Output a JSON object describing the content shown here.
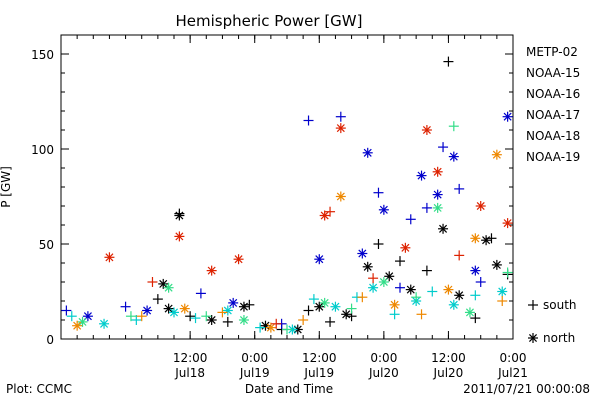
{
  "chart_data": {
    "type": "scatter",
    "title": "Hemispheric Power [GW]",
    "xlabel": "Date and Time",
    "ylabel": "P [GW]",
    "ylim": [
      0,
      160
    ],
    "yticks": [
      0,
      50,
      100,
      150
    ],
    "xlim": [
      "2011-07-17 12:00",
      "2011-07-21 00:00"
    ],
    "xticks": [
      {
        "t": "2011-07-18 12:00",
        "top": "12:00",
        "bottom": "Jul18"
      },
      {
        "t": "2011-07-19 00:00",
        "top": "0:00",
        "bottom": "Jul19"
      },
      {
        "t": "2011-07-19 12:00",
        "top": "12:00",
        "bottom": "Jul19"
      },
      {
        "t": "2011-07-20 00:00",
        "top": "0:00",
        "bottom": "Jul20"
      },
      {
        "t": "2011-07-20 12:00",
        "top": "12:00",
        "bottom": "Jul20"
      },
      {
        "t": "2011-07-21 00:00",
        "top": "0:00",
        "bottom": "Jul21"
      }
    ],
    "grid": false,
    "legend_position": "right",
    "marker_legend": [
      {
        "symbol": "+",
        "label": "south"
      },
      {
        "symbol": "*",
        "label": "north"
      }
    ],
    "series": [
      {
        "name": "METP-02",
        "color": "#000000",
        "points": [
          [
            "2011-07-18 10:00",
            66,
            "+"
          ],
          [
            "2011-07-18 10:00",
            65,
            "*"
          ],
          [
            "2011-07-18 07:00",
            29,
            "*"
          ],
          [
            "2011-07-18 06:00",
            21,
            "+"
          ],
          [
            "2011-07-18 08:00",
            16,
            "*"
          ],
          [
            "2011-07-18 12:00",
            12,
            "+"
          ],
          [
            "2011-07-18 16:00",
            10,
            "*"
          ],
          [
            "2011-07-18 19:00",
            9,
            "+"
          ],
          [
            "2011-07-18 22:00",
            17,
            "*"
          ],
          [
            "2011-07-18 23:00",
            18,
            "+"
          ],
          [
            "2011-07-19 02:00",
            7,
            "*"
          ],
          [
            "2011-07-19 05:00",
            5,
            "+"
          ],
          [
            "2011-07-19 08:00",
            5,
            "*"
          ],
          [
            "2011-07-19 10:00",
            15,
            "+"
          ],
          [
            "2011-07-19 12:00",
            17,
            "*"
          ],
          [
            "2011-07-19 14:00",
            9,
            "+"
          ],
          [
            "2011-07-19 17:00",
            13,
            "*"
          ],
          [
            "2011-07-19 18:00",
            12,
            "+"
          ],
          [
            "2011-07-19 21:00",
            38,
            "*"
          ],
          [
            "2011-07-19 23:00",
            50,
            "+"
          ],
          [
            "2011-07-20 01:00",
            33,
            "*"
          ],
          [
            "2011-07-20 03:00",
            41,
            "+"
          ],
          [
            "2011-07-20 05:00",
            26,
            "*"
          ],
          [
            "2011-07-20 08:00",
            36,
            "+"
          ],
          [
            "2011-07-20 11:00",
            58,
            "*"
          ],
          [
            "2011-07-20 12:00",
            146,
            "+"
          ],
          [
            "2011-07-20 14:00",
            23,
            "*"
          ],
          [
            "2011-07-20 17:00",
            11,
            "+"
          ],
          [
            "2011-07-20 19:00",
            52,
            "*"
          ],
          [
            "2011-07-20 20:00",
            53,
            "+"
          ],
          [
            "2011-07-20 21:00",
            39,
            "*"
          ],
          [
            "2011-07-20 23:00",
            34,
            "+"
          ]
        ]
      },
      {
        "name": "NOAA-15",
        "color": "#0000cc",
        "points": [
          [
            "2011-07-17 13:00",
            15,
            "+"
          ],
          [
            "2011-07-17 17:00",
            12,
            "*"
          ],
          [
            "2011-07-18 00:00",
            17,
            "+"
          ],
          [
            "2011-07-18 04:00",
            15,
            "*"
          ],
          [
            "2011-07-18 14:00",
            24,
            "+"
          ],
          [
            "2011-07-18 20:00",
            19,
            "*"
          ],
          [
            "2011-07-19 05:00",
            8,
            "+"
          ],
          [
            "2011-07-19 10:00",
            115,
            "+"
          ],
          [
            "2011-07-19 12:00",
            42,
            "*"
          ],
          [
            "2011-07-19 16:00",
            117,
            "+"
          ],
          [
            "2011-07-19 20:00",
            45,
            "*"
          ],
          [
            "2011-07-19 21:00",
            98,
            "*"
          ],
          [
            "2011-07-19 23:00",
            77,
            "+"
          ],
          [
            "2011-07-20 00:00",
            68,
            "*"
          ],
          [
            "2011-07-20 03:00",
            27,
            "+"
          ],
          [
            "2011-07-20 05:00",
            63,
            "+"
          ],
          [
            "2011-07-20 07:00",
            86,
            "*"
          ],
          [
            "2011-07-20 08:00",
            69,
            "+"
          ],
          [
            "2011-07-20 10:00",
            76,
            "*"
          ],
          [
            "2011-07-20 11:00",
            101,
            "+"
          ],
          [
            "2011-07-20 13:00",
            96,
            "*"
          ],
          [
            "2011-07-20 14:00",
            79,
            "+"
          ],
          [
            "2011-07-20 17:00",
            36,
            "*"
          ],
          [
            "2011-07-20 18:00",
            30,
            "+"
          ],
          [
            "2011-07-20 23:00",
            117,
            "*"
          ]
        ]
      },
      {
        "name": "NOAA-16",
        "color": "#00cccc",
        "points": [
          [
            "2011-07-17 14:00",
            12,
            "+"
          ],
          [
            "2011-07-17 20:00",
            8,
            "*"
          ],
          [
            "2011-07-18 02:00",
            10,
            "+"
          ],
          [
            "2011-07-18 09:00",
            14,
            "*"
          ],
          [
            "2011-07-18 13:00",
            11,
            "+"
          ],
          [
            "2011-07-18 19:00",
            15,
            "*"
          ],
          [
            "2011-07-19 01:00",
            6,
            "+"
          ],
          [
            "2011-07-19 07:00",
            5,
            "*"
          ],
          [
            "2011-07-19 11:00",
            21,
            "+"
          ],
          [
            "2011-07-19 15:00",
            17,
            "*"
          ],
          [
            "2011-07-19 19:00",
            22,
            "+"
          ],
          [
            "2011-07-19 22:00",
            27,
            "*"
          ],
          [
            "2011-07-20 02:00",
            13,
            "+"
          ],
          [
            "2011-07-20 06:00",
            20,
            "*"
          ],
          [
            "2011-07-20 09:00",
            25,
            "+"
          ],
          [
            "2011-07-20 13:00",
            18,
            "*"
          ],
          [
            "2011-07-20 17:00",
            23,
            "+"
          ],
          [
            "2011-07-20 22:00",
            25,
            "*"
          ]
        ]
      },
      {
        "name": "NOAA-17",
        "color": "#33dd88",
        "points": [
          [
            "2011-07-17 16:00",
            9,
            "*"
          ],
          [
            "2011-07-18 01:00",
            12,
            "+"
          ],
          [
            "2011-07-18 08:00",
            27,
            "*"
          ],
          [
            "2011-07-18 15:00",
            12,
            "+"
          ],
          [
            "2011-07-18 22:00",
            10,
            "*"
          ],
          [
            "2011-07-19 06:00",
            5,
            "+"
          ],
          [
            "2011-07-19 13:00",
            19,
            "*"
          ],
          [
            "2011-07-19 18:00",
            16,
            "+"
          ],
          [
            "2011-07-20 00:00",
            30,
            "*"
          ],
          [
            "2011-07-20 06:00",
            22,
            "+"
          ],
          [
            "2011-07-20 10:00",
            69,
            "*"
          ],
          [
            "2011-07-20 13:00",
            112,
            "+"
          ],
          [
            "2011-07-20 16:00",
            14,
            "*"
          ],
          [
            "2011-07-20 23:00",
            35,
            "+"
          ]
        ]
      },
      {
        "name": "NOAA-18",
        "color": "#ee8800",
        "points": [
          [
            "2011-07-17 15:00",
            7,
            "*"
          ],
          [
            "2011-07-18 03:00",
            12,
            "+"
          ],
          [
            "2011-07-18 11:00",
            16,
            "*"
          ],
          [
            "2011-07-18 18:00",
            14,
            "+"
          ],
          [
            "2011-07-19 03:00",
            6,
            "*"
          ],
          [
            "2011-07-19 09:00",
            10,
            "+"
          ],
          [
            "2011-07-19 16:00",
            75,
            "*"
          ],
          [
            "2011-07-19 20:00",
            22,
            "+"
          ],
          [
            "2011-07-20 02:00",
            18,
            "*"
          ],
          [
            "2011-07-20 07:00",
            13,
            "+"
          ],
          [
            "2011-07-20 12:00",
            26,
            "*"
          ],
          [
            "2011-07-20 17:00",
            53,
            "*"
          ],
          [
            "2011-07-20 21:00",
            97,
            "*"
          ],
          [
            "2011-07-20 22:00",
            20,
            "+"
          ]
        ]
      },
      {
        "name": "NOAA-19",
        "color": "#dd2200",
        "points": [
          [
            "2011-07-17 21:00",
            43,
            "*"
          ],
          [
            "2011-07-18 05:00",
            30,
            "+"
          ],
          [
            "2011-07-18 10:00",
            54,
            "*"
          ],
          [
            "2011-07-18 16:00",
            36,
            "*"
          ],
          [
            "2011-07-18 21:00",
            42,
            "*"
          ],
          [
            "2011-07-19 04:00",
            8,
            "+"
          ],
          [
            "2011-07-19 13:00",
            65,
            "*"
          ],
          [
            "2011-07-19 14:00",
            67,
            "+"
          ],
          [
            "2011-07-19 16:00",
            111,
            "*"
          ],
          [
            "2011-07-19 22:00",
            32,
            "+"
          ],
          [
            "2011-07-20 04:00",
            48,
            "*"
          ],
          [
            "2011-07-20 08:00",
            110,
            "*"
          ],
          [
            "2011-07-20 10:00",
            88,
            "*"
          ],
          [
            "2011-07-20 14:00",
            44,
            "+"
          ],
          [
            "2011-07-20 18:00",
            70,
            "*"
          ],
          [
            "2011-07-20 23:00",
            61,
            "*"
          ]
        ]
      }
    ]
  },
  "footer": {
    "left": "Plot: CCMC",
    "right": "2011/07/21 00:00:08"
  }
}
